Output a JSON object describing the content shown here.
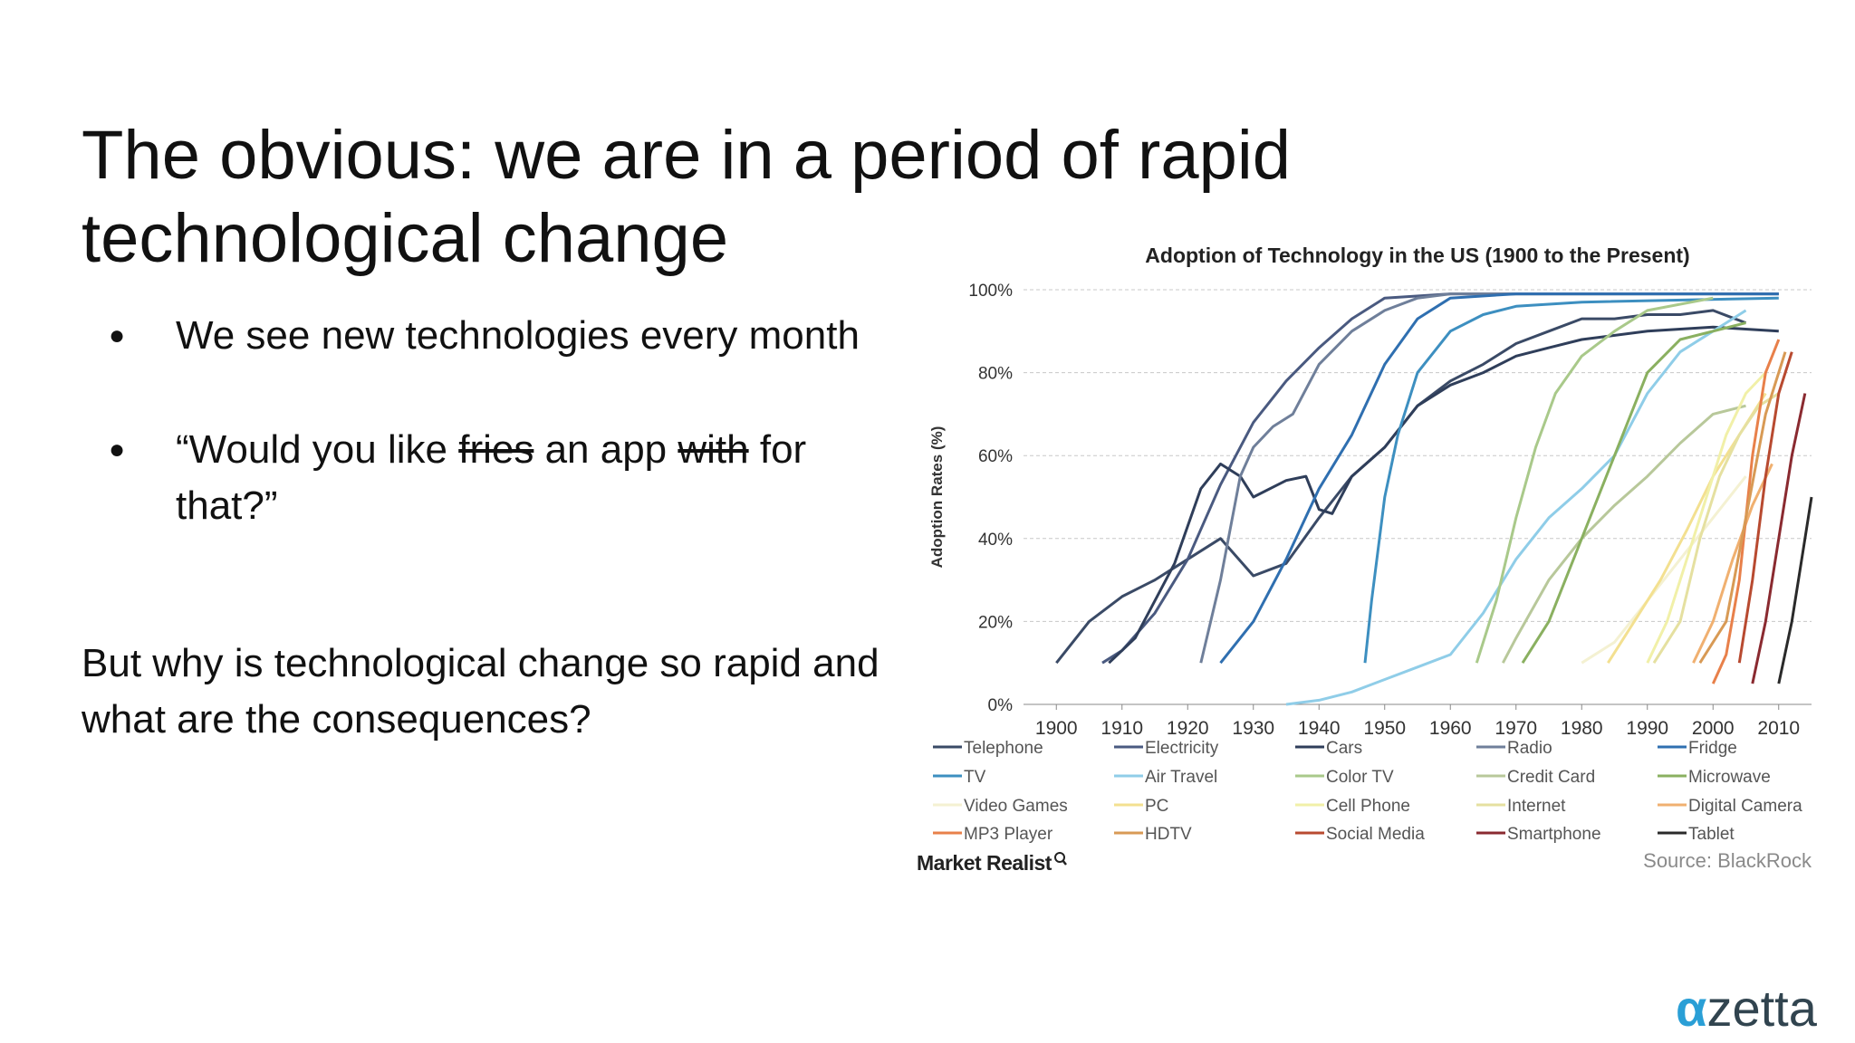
{
  "slide": {
    "title": "The obvious: we are in a period of rapid technological change",
    "bullets": [
      {
        "parts": [
          {
            "text": "We see new technologies every month",
            "strike": false
          }
        ]
      },
      {
        "parts": [
          {
            "text": "“Would you like ",
            "strike": false
          },
          {
            "text": "fries",
            "strike": true
          },
          {
            "text": " an app ",
            "strike": false
          },
          {
            "text": "with",
            "strike": true
          },
          {
            "text": " for that?”",
            "strike": false
          }
        ]
      }
    ],
    "closing": "But why is technological change so rapid and what are the consequences?",
    "brand_left": "Market Realist",
    "source": "Source: BlackRock",
    "logo_alpha": "α",
    "logo_text": "zetta"
  },
  "chart_data": {
    "type": "line",
    "title": "Adoption of Technology in the US (1900 to the Present)",
    "xlabel": "",
    "ylabel": "Adoption Rates (%)",
    "xlim": [
      1895,
      2015
    ],
    "ylim": [
      0,
      100
    ],
    "x_ticks": [
      1900,
      1910,
      1920,
      1930,
      1940,
      1950,
      1960,
      1970,
      1980,
      1990,
      2000,
      2010
    ],
    "x_tick_labels": [
      "1900",
      "1910",
      "1920",
      "1930",
      "1940",
      "1950",
      "1960",
      "1970",
      "1980",
      "1990",
      "2000",
      "2010"
    ],
    "y_ticks": [
      0,
      20,
      40,
      60,
      80,
      100
    ],
    "y_tick_labels": [
      "0%",
      "20%",
      "40%",
      "60%",
      "80%",
      "100%"
    ],
    "grid": true,
    "legend_position": "bottom",
    "series": [
      {
        "name": "Telephone",
        "color": "#3a4a66",
        "points": [
          [
            1900,
            10
          ],
          [
            1905,
            20
          ],
          [
            1910,
            26
          ],
          [
            1915,
            30
          ],
          [
            1920,
            35
          ],
          [
            1925,
            40
          ],
          [
            1930,
            31
          ],
          [
            1935,
            34
          ],
          [
            1940,
            45
          ],
          [
            1945,
            55
          ],
          [
            1950,
            62
          ],
          [
            1955,
            72
          ],
          [
            1960,
            78
          ],
          [
            1965,
            82
          ],
          [
            1970,
            87
          ],
          [
            1975,
            90
          ],
          [
            1980,
            93
          ],
          [
            1985,
            93
          ],
          [
            1990,
            94
          ],
          [
            1995,
            94
          ],
          [
            2000,
            95
          ],
          [
            2005,
            92
          ]
        ]
      },
      {
        "name": "Electricity",
        "color": "#4a5a80",
        "points": [
          [
            1907,
            10
          ],
          [
            1910,
            13
          ],
          [
            1915,
            22
          ],
          [
            1920,
            35
          ],
          [
            1925,
            53
          ],
          [
            1930,
            68
          ],
          [
            1935,
            78
          ],
          [
            1940,
            86
          ],
          [
            1945,
            93
          ],
          [
            1950,
            98
          ],
          [
            1960,
            99
          ],
          [
            2010,
            99
          ]
        ]
      },
      {
        "name": "Cars",
        "color": "#2f3e5a",
        "points": [
          [
            1908,
            10
          ],
          [
            1912,
            16
          ],
          [
            1918,
            34
          ],
          [
            1922,
            52
          ],
          [
            1925,
            58
          ],
          [
            1928,
            55
          ],
          [
            1930,
            50
          ],
          [
            1935,
            54
          ],
          [
            1938,
            55
          ],
          [
            1940,
            47
          ],
          [
            1942,
            46
          ],
          [
            1945,
            55
          ],
          [
            1950,
            62
          ],
          [
            1955,
            72
          ],
          [
            1960,
            77
          ],
          [
            1965,
            80
          ],
          [
            1970,
            84
          ],
          [
            1975,
            86
          ],
          [
            1980,
            88
          ],
          [
            1990,
            90
          ],
          [
            2000,
            91
          ],
          [
            2010,
            90
          ]
        ]
      },
      {
        "name": "Radio",
        "color": "#6f7f9a",
        "points": [
          [
            1922,
            10
          ],
          [
            1925,
            30
          ],
          [
            1928,
            55
          ],
          [
            1930,
            62
          ],
          [
            1933,
            67
          ],
          [
            1936,
            70
          ],
          [
            1940,
            82
          ],
          [
            1945,
            90
          ],
          [
            1950,
            95
          ],
          [
            1955,
            98
          ],
          [
            1960,
            99
          ],
          [
            2010,
            99
          ]
        ]
      },
      {
        "name": "Fridge",
        "color": "#2f6fb0",
        "points": [
          [
            1925,
            10
          ],
          [
            1930,
            20
          ],
          [
            1935,
            35
          ],
          [
            1940,
            52
          ],
          [
            1945,
            65
          ],
          [
            1950,
            82
          ],
          [
            1955,
            93
          ],
          [
            1960,
            98
          ],
          [
            1970,
            99
          ],
          [
            2010,
            99
          ]
        ]
      },
      {
        "name": "TV",
        "color": "#3d8fc0",
        "points": [
          [
            1947,
            10
          ],
          [
            1948,
            25
          ],
          [
            1950,
            50
          ],
          [
            1952,
            65
          ],
          [
            1955,
            80
          ],
          [
            1960,
            90
          ],
          [
            1965,
            94
          ],
          [
            1970,
            96
          ],
          [
            1980,
            97
          ],
          [
            2010,
            98
          ]
        ]
      },
      {
        "name": "Air Travel",
        "color": "#8fcde8",
        "points": [
          [
            1935,
            0
          ],
          [
            1940,
            1
          ],
          [
            1945,
            3
          ],
          [
            1950,
            6
          ],
          [
            1955,
            9
          ],
          [
            1960,
            12
          ],
          [
            1965,
            22
          ],
          [
            1970,
            35
          ],
          [
            1975,
            45
          ],
          [
            1980,
            52
          ],
          [
            1985,
            60
          ],
          [
            1990,
            75
          ],
          [
            1995,
            85
          ],
          [
            2000,
            90
          ],
          [
            2005,
            95
          ]
        ]
      },
      {
        "name": "Color TV",
        "color": "#a9c98a",
        "points": [
          [
            1964,
            10
          ],
          [
            1967,
            25
          ],
          [
            1970,
            45
          ],
          [
            1973,
            62
          ],
          [
            1976,
            75
          ],
          [
            1980,
            84
          ],
          [
            1985,
            90
          ],
          [
            1990,
            95
          ],
          [
            2000,
            98
          ]
        ]
      },
      {
        "name": "Credit Card",
        "color": "#b8c89a",
        "points": [
          [
            1968,
            10
          ],
          [
            1970,
            16
          ],
          [
            1975,
            30
          ],
          [
            1980,
            40
          ],
          [
            1985,
            48
          ],
          [
            1990,
            55
          ],
          [
            1995,
            63
          ],
          [
            2000,
            70
          ],
          [
            2005,
            72
          ]
        ]
      },
      {
        "name": "Microwave",
        "color": "#8ab060",
        "points": [
          [
            1971,
            10
          ],
          [
            1975,
            20
          ],
          [
            1980,
            40
          ],
          [
            1985,
            60
          ],
          [
            1990,
            80
          ],
          [
            1995,
            88
          ],
          [
            2000,
            90
          ],
          [
            2005,
            92
          ]
        ]
      },
      {
        "name": "Video Games",
        "color": "#f4f1d2",
        "points": [
          [
            1980,
            10
          ],
          [
            1985,
            15
          ],
          [
            1990,
            25
          ],
          [
            1995,
            35
          ],
          [
            2000,
            45
          ],
          [
            2005,
            55
          ]
        ]
      },
      {
        "name": "PC",
        "color": "#f3e090",
        "points": [
          [
            1984,
            10
          ],
          [
            1988,
            20
          ],
          [
            1992,
            30
          ],
          [
            1996,
            42
          ],
          [
            2000,
            55
          ],
          [
            2004,
            65
          ],
          [
            2008,
            75
          ]
        ]
      },
      {
        "name": "Cell Phone",
        "color": "#f1f0a8",
        "points": [
          [
            1990,
            10
          ],
          [
            1993,
            20
          ],
          [
            1996,
            35
          ],
          [
            1999,
            50
          ],
          [
            2002,
            65
          ],
          [
            2005,
            75
          ],
          [
            2008,
            80
          ]
        ]
      },
      {
        "name": "Internet",
        "color": "#e5e0a0",
        "points": [
          [
            1991,
            10
          ],
          [
            1995,
            20
          ],
          [
            1998,
            40
          ],
          [
            2001,
            55
          ],
          [
            2004,
            65
          ],
          [
            2007,
            72
          ],
          [
            2010,
            75
          ]
        ]
      },
      {
        "name": "Digital Camera",
        "color": "#f0b070",
        "points": [
          [
            1997,
            10
          ],
          [
            2000,
            20
          ],
          [
            2003,
            35
          ],
          [
            2006,
            48
          ],
          [
            2009,
            58
          ]
        ]
      },
      {
        "name": "MP3 Player",
        "color": "#e8804a",
        "points": [
          [
            2000,
            5
          ],
          [
            2002,
            12
          ],
          [
            2004,
            30
          ],
          [
            2006,
            60
          ],
          [
            2008,
            80
          ],
          [
            2010,
            88
          ]
        ]
      },
      {
        "name": "HDTV",
        "color": "#d89a55",
        "points": [
          [
            1998,
            10
          ],
          [
            2002,
            20
          ],
          [
            2005,
            45
          ],
          [
            2008,
            70
          ],
          [
            2011,
            85
          ]
        ]
      },
      {
        "name": "Social Media",
        "color": "#b84a30",
        "points": [
          [
            2004,
            10
          ],
          [
            2006,
            30
          ],
          [
            2008,
            55
          ],
          [
            2010,
            75
          ],
          [
            2012,
            85
          ]
        ]
      },
      {
        "name": "Smartphone",
        "color": "#8a2a30",
        "points": [
          [
            2006,
            5
          ],
          [
            2008,
            20
          ],
          [
            2010,
            40
          ],
          [
            2012,
            60
          ],
          [
            2014,
            75
          ]
        ]
      },
      {
        "name": "Tablet",
        "color": "#2a2a2a",
        "points": [
          [
            2010,
            5
          ],
          [
            2012,
            20
          ],
          [
            2014,
            40
          ],
          [
            2015,
            50
          ]
        ]
      }
    ]
  }
}
